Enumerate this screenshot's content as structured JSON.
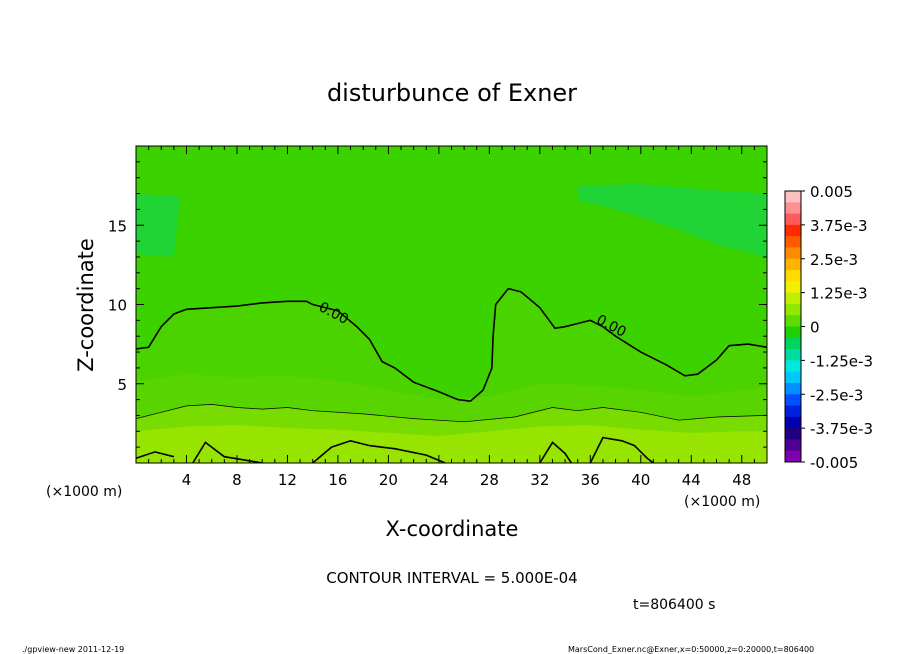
{
  "chart_data": {
    "type": "heatmap",
    "title": "disturbunce of Exner",
    "xlabel": "X-coordinate",
    "ylabel": "Z-coordinate",
    "x_unit_left": "(×1000 m)",
    "x_unit_right": "(×1000 m)",
    "xlim": [
      0,
      50
    ],
    "ylim": [
      0,
      20
    ],
    "x_ticks": [
      4,
      8,
      12,
      16,
      20,
      24,
      28,
      32,
      36,
      40,
      44,
      48
    ],
    "x_tick_labels": [
      "4",
      "8",
      "12",
      "16",
      "20",
      "24",
      "28",
      "32",
      "36",
      "40",
      "44",
      "48"
    ],
    "y_ticks": [
      5,
      10,
      15
    ],
    "y_tick_labels": [
      "5",
      "10",
      "15"
    ],
    "colorbar": {
      "labels": [
        "0.005",
        "3.75e-3",
        "2.5e-3",
        "1.25e-3",
        "0",
        "-1.25e-3",
        "-2.5e-3",
        "-3.75e-3",
        "-0.005"
      ],
      "levels": [
        0.005,
        0.00375,
        0.0025,
        0.00125,
        0,
        -0.00125,
        -0.0025,
        -0.00375,
        -0.005
      ],
      "colors_top_to_bottom": [
        "#ffc0c0",
        "#ff9090",
        "#ff5a5a",
        "#ff2a00",
        "#ff5a00",
        "#ff8c00",
        "#ffb400",
        "#ffdc00",
        "#f0f000",
        "#c0f000",
        "#90e800",
        "#5cdc00",
        "#20d000",
        "#00d460",
        "#00dca0",
        "#00e8e0",
        "#00c8ff",
        "#0090ff",
        "#0050ff",
        "#0020e0",
        "#0000b0",
        "#200080",
        "#500090",
        "#8000b0"
      ]
    },
    "contour_labels": [
      "0.00",
      "0.00"
    ],
    "zero_contour": [
      [
        0,
        7.2
      ],
      [
        1,
        7.3
      ],
      [
        2,
        8.6
      ],
      [
        3,
        9.4
      ],
      [
        4,
        9.7
      ],
      [
        6,
        9.8
      ],
      [
        8,
        9.9
      ],
      [
        10,
        10.1
      ],
      [
        12,
        10.2
      ],
      [
        13.5,
        10.2
      ],
      [
        14,
        10.0
      ],
      [
        16,
        9.6
      ],
      [
        17.5,
        8.6
      ],
      [
        18.5,
        7.8
      ],
      [
        19.5,
        6.4
      ],
      [
        20.5,
        6.0
      ],
      [
        22,
        5.1
      ],
      [
        24,
        4.5
      ],
      [
        25.5,
        4.0
      ],
      [
        26.5,
        3.9
      ],
      [
        27.5,
        4.6
      ],
      [
        28.2,
        6.0
      ],
      [
        28.3,
        8.0
      ],
      [
        28.5,
        10.0
      ],
      [
        29.5,
        11.0
      ],
      [
        30.5,
        10.8
      ],
      [
        32,
        9.8
      ],
      [
        33.2,
        8.5
      ],
      [
        34,
        8.6
      ],
      [
        35,
        8.8
      ],
      [
        36,
        9.0
      ],
      [
        37,
        8.6
      ],
      [
        38,
        8.0
      ],
      [
        40,
        7.0
      ],
      [
        42,
        6.2
      ],
      [
        43.5,
        5.5
      ],
      [
        44.5,
        5.6
      ],
      [
        46,
        6.5
      ],
      [
        47,
        7.4
      ],
      [
        48.5,
        7.5
      ],
      [
        50,
        7.3
      ]
    ],
    "thin_contour": [
      [
        0,
        2.8
      ],
      [
        2,
        3.2
      ],
      [
        4,
        3.6
      ],
      [
        6,
        3.7
      ],
      [
        8,
        3.5
      ],
      [
        10,
        3.4
      ],
      [
        12,
        3.5
      ],
      [
        14,
        3.3
      ],
      [
        18,
        3.1
      ],
      [
        22,
        2.8
      ],
      [
        26,
        2.6
      ],
      [
        30,
        2.9
      ],
      [
        33,
        3.5
      ],
      [
        35,
        3.3
      ],
      [
        37,
        3.5
      ],
      [
        40,
        3.2
      ],
      [
        43,
        2.7
      ],
      [
        46,
        2.9
      ],
      [
        50,
        3.0
      ]
    ],
    "bottom_contours": [
      [
        [
          0,
          0.3
        ],
        [
          1.5,
          0.7
        ],
        [
          3,
          0.4
        ]
      ],
      [
        [
          4.5,
          0
        ],
        [
          5.5,
          1.3
        ],
        [
          7,
          0.4
        ],
        [
          8.5,
          0.2
        ],
        [
          10,
          0
        ]
      ],
      [
        [
          14,
          0
        ],
        [
          15.5,
          1.0
        ],
        [
          17,
          1.4
        ],
        [
          18.5,
          1.1
        ],
        [
          20.5,
          0.9
        ],
        [
          23,
          0.5
        ],
        [
          24.5,
          0
        ]
      ],
      [
        [
          32,
          0
        ],
        [
          33,
          1.3
        ],
        [
          34,
          0.6
        ],
        [
          34.5,
          0
        ]
      ],
      [
        [
          36,
          0
        ],
        [
          37,
          1.6
        ],
        [
          38.5,
          1.4
        ],
        [
          39.5,
          1.1
        ],
        [
          40.5,
          0.3
        ],
        [
          41,
          0
        ]
      ]
    ]
  },
  "footer": {
    "contour_interval": "CONTOUR INTERVAL = 5.000E-04",
    "time": "t=806400 s",
    "program": "./gpview-new   2011-12-19",
    "source": "MarsCond_Exner.nc@Exner,x=0:50000,z=0:20000,t=806400"
  },
  "colors": {
    "field_base": "#3cd200",
    "upper_light": "#20d436",
    "mid_band": "#58d400",
    "low_band": "#78dc00",
    "bottom_band": "#96e400",
    "patch": "#10d66a"
  }
}
